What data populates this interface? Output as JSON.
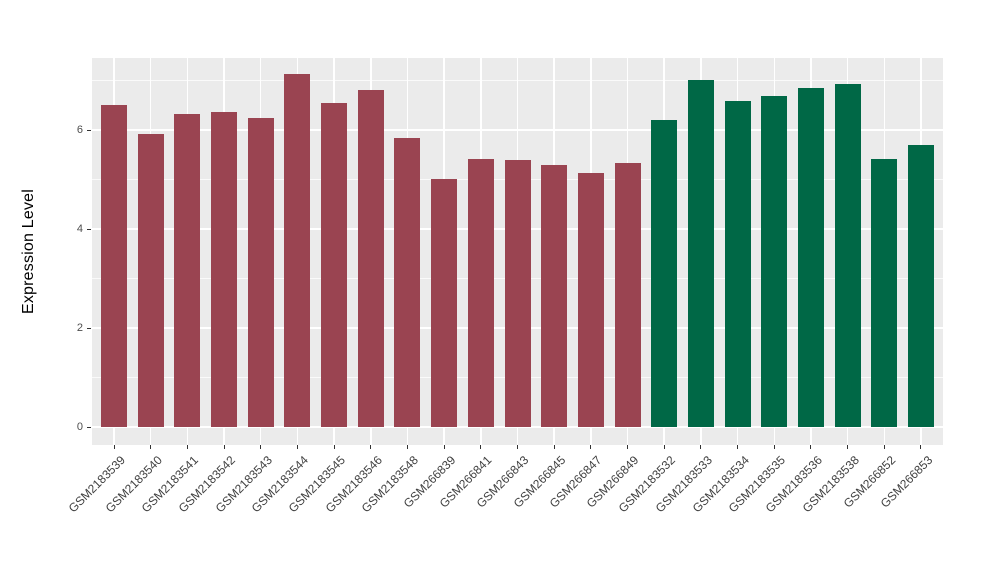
{
  "chart_data": {
    "type": "bar",
    "title": "",
    "ylabel": "Expression Level",
    "xlabel": "",
    "categories": [
      "GSM2183539",
      "GSM2183540",
      "GSM2183541",
      "GSM2183542",
      "GSM2183543",
      "GSM2183544",
      "GSM2183545",
      "GSM2183546",
      "GSM2183548",
      "GSM266839",
      "GSM266841",
      "GSM266843",
      "GSM266845",
      "GSM266847",
      "GSM266849",
      "GSM2183532",
      "GSM2183533",
      "GSM2183534",
      "GSM2183535",
      "GSM2183536",
      "GSM2183538",
      "GSM266852",
      "GSM266853"
    ],
    "values": [
      6.5,
      5.92,
      6.33,
      6.36,
      6.25,
      7.13,
      6.55,
      6.8,
      5.84,
      5.01,
      5.41,
      5.39,
      5.29,
      5.14,
      5.34,
      6.2,
      7.02,
      6.59,
      6.69,
      6.84,
      6.92,
      5.42,
      5.69
    ],
    "group_of_bar": [
      0,
      0,
      0,
      0,
      0,
      0,
      0,
      0,
      0,
      0,
      0,
      0,
      0,
      0,
      0,
      1,
      1,
      1,
      1,
      1,
      1,
      1,
      1
    ],
    "group_colors": [
      "#9A4451",
      "#006846"
    ],
    "yticks": [
      0,
      2,
      4,
      6
    ],
    "minor_ticks": [
      1,
      3,
      5,
      7
    ],
    "ylim": [
      0,
      7.45
    ],
    "legend": "none",
    "grid": "major-and-minor",
    "panel_bg": "#EBEBEB",
    "grid_color": "#FFFFFF",
    "tick_color": "#333333",
    "tick_label_color": "#4d4d4d"
  }
}
